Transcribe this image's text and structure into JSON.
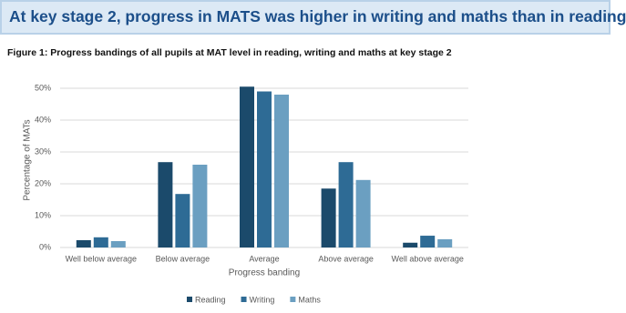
{
  "header": {
    "title": "At key stage 2, progress in MATS was higher in writing and maths than in reading"
  },
  "chart_data": {
    "type": "bar",
    "title": "Figure 1: Progress bandings of all pupils at MAT level in reading, writing and maths at key stage 2",
    "x_label": "Progress banding",
    "y_label": "Percentage of MATs",
    "categories": [
      "Well below average",
      "Below average",
      "Average",
      "Above average",
      "Well above average"
    ],
    "series": [
      {
        "name": "Reading",
        "color": "#1b4a6b",
        "values": [
          2.3,
          26.8,
          50.5,
          18.5,
          1.5
        ]
      },
      {
        "name": "Writing",
        "color": "#2e6b95",
        "values": [
          3.2,
          16.8,
          49.0,
          26.8,
          3.7
        ]
      },
      {
        "name": "Maths",
        "color": "#6b9fc1",
        "values": [
          2.0,
          26.0,
          48.0,
          21.2,
          2.6
        ]
      }
    ],
    "ylim": [
      0,
      50
    ],
    "yticks": [
      {
        "value": 0,
        "label": "0%"
      },
      {
        "value": 10,
        "label": "10%"
      },
      {
        "value": 20,
        "label": "20%"
      },
      {
        "value": 30,
        "label": "30%"
      },
      {
        "value": 40,
        "label": "40%"
      },
      {
        "value": 50,
        "label": "50%"
      }
    ],
    "grid": true,
    "legend": "bottom"
  }
}
